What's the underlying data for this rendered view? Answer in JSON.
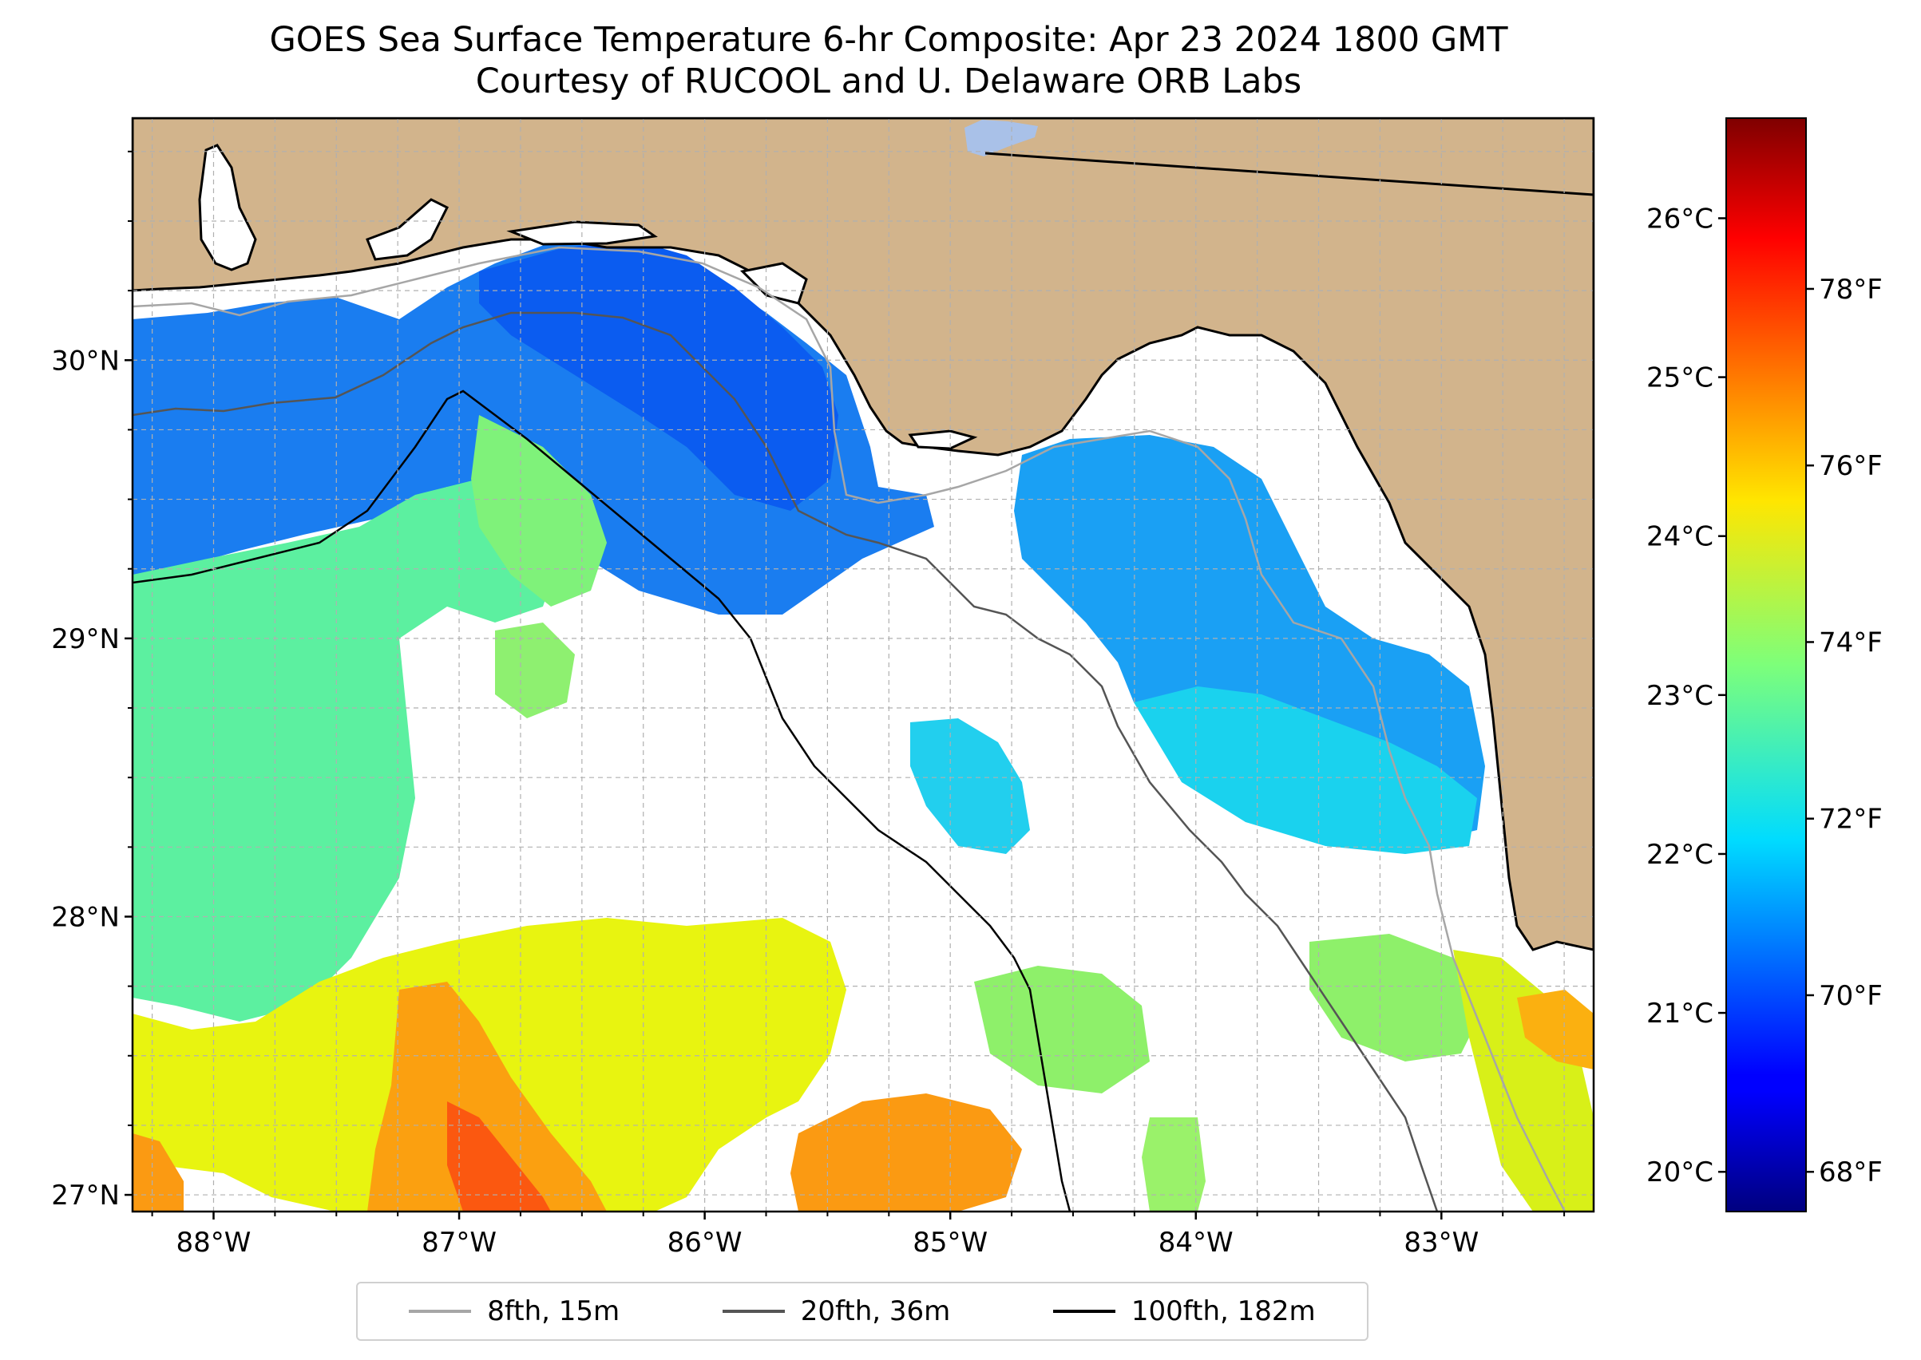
{
  "title": {
    "line1": "GOES Sea Surface Temperature 6-hr Composite: Apr 23 2024 1800 GMT",
    "line2": "Courtesy of RUCOOL and U. Delaware ORB Labs"
  },
  "map": {
    "lon_range": [
      -88.33,
      -82.38
    ],
    "lat_range": [
      26.94,
      30.87
    ],
    "lat_ticks": [
      {
        "value": 27,
        "label": "27°N"
      },
      {
        "value": 28,
        "label": "28°N"
      },
      {
        "value": 29,
        "label": "29°N"
      },
      {
        "value": 30,
        "label": "30°N"
      }
    ],
    "lon_ticks": [
      {
        "value": -88,
        "label": "88°W"
      },
      {
        "value": -87,
        "label": "87°W"
      },
      {
        "value": -86,
        "label": "86°W"
      },
      {
        "value": -85,
        "label": "85°W"
      },
      {
        "value": -84,
        "label": "84°W"
      },
      {
        "value": -83,
        "label": "83°W"
      }
    ],
    "land_color": "#d2b48c",
    "ocean_no_data_color": "#ffffff",
    "gridlines": true
  },
  "colorbar": {
    "colormap": "jet",
    "range_c": [
      19.75,
      26.63
    ],
    "celsius_ticks": [
      {
        "value": 20,
        "label": "20°C"
      },
      {
        "value": 21,
        "label": "21°C"
      },
      {
        "value": 22,
        "label": "22°C"
      },
      {
        "value": 23,
        "label": "23°C"
      },
      {
        "value": 24,
        "label": "24°C"
      },
      {
        "value": 25,
        "label": "25°C"
      },
      {
        "value": 26,
        "label": "26°C"
      }
    ],
    "fahrenheit_ticks": [
      {
        "value": 68,
        "label": "68°F"
      },
      {
        "value": 70,
        "label": "70°F"
      },
      {
        "value": 72,
        "label": "72°F"
      },
      {
        "value": 74,
        "label": "74°F"
      },
      {
        "value": 76,
        "label": "76°F"
      },
      {
        "value": 78,
        "label": "78°F"
      }
    ]
  },
  "legend": {
    "items": [
      {
        "label": "8fth, 15m",
        "color": "#a6a6a6"
      },
      {
        "label": "20fth, 36m",
        "color": "#555555"
      },
      {
        "label": "100fth, 182m",
        "color": "#000000"
      }
    ]
  }
}
